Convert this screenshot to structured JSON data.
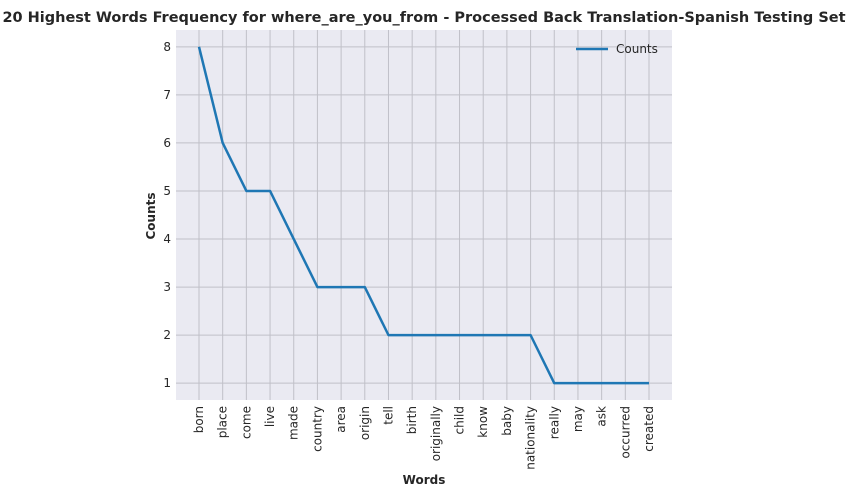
{
  "chart_data": {
    "type": "line",
    "title": "20 Highest Words Frequency for where_are_you_from - Processed Back Translation-Spanish Testing Set",
    "xlabel": "Words",
    "ylabel": "Counts",
    "categories": [
      "born",
      "place",
      "come",
      "live",
      "made",
      "country",
      "area",
      "origin",
      "tell",
      "birth",
      "originally",
      "child",
      "know",
      "baby",
      "nationality",
      "really",
      "may",
      "ask",
      "occurred",
      "created"
    ],
    "series": [
      {
        "name": "Counts",
        "values": [
          8,
          6,
          5,
          5,
          4,
          3,
          3,
          3,
          2,
          2,
          2,
          2,
          2,
          2,
          2,
          1,
          1,
          1,
          1,
          1
        ],
        "color": "#1f77b4"
      }
    ],
    "yticks": [
      1,
      2,
      3,
      4,
      5,
      6,
      7,
      8
    ],
    "ylim": [
      0.65,
      8.35
    ],
    "grid": true,
    "legend": "top-right",
    "background": "#eaeaf2",
    "grid_color": "#c0c0c8"
  }
}
